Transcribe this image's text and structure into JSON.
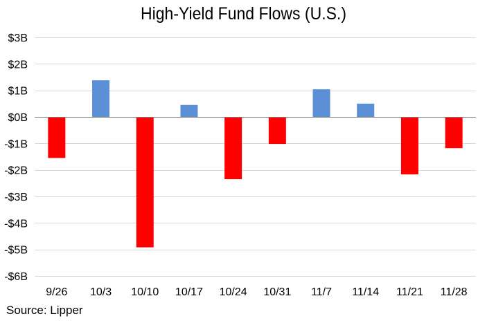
{
  "chart_data": {
    "type": "bar",
    "title": "High-Yield Fund Flows (U.S.)",
    "xlabel": "",
    "ylabel": "",
    "categories": [
      "9/26",
      "10/3",
      "10/10",
      "10/17",
      "10/24",
      "10/31",
      "11/7",
      "11/14",
      "11/21",
      "11/28"
    ],
    "values": [
      -1.55,
      1.38,
      -4.92,
      0.45,
      -2.35,
      -1.02,
      1.04,
      0.5,
      -2.17,
      -1.18
    ],
    "ylim": [
      -6,
      3
    ],
    "y_ticks": [
      3,
      2,
      1,
      0,
      -1,
      -2,
      -3,
      -4,
      -5,
      -6
    ],
    "y_tick_labels": [
      "$3B",
      "$2B",
      "$1B",
      "$0B",
      "-$1B",
      "-$2B",
      "-$3B",
      "-$4B",
      "-$5B",
      "-$6B"
    ],
    "grid": true,
    "legend": "none",
    "colors": {
      "positive": "#5B8FD6",
      "negative": "#FF0000",
      "grid": "#D9D9D9",
      "axis": "#808080"
    }
  },
  "source": "Source: Lipper"
}
